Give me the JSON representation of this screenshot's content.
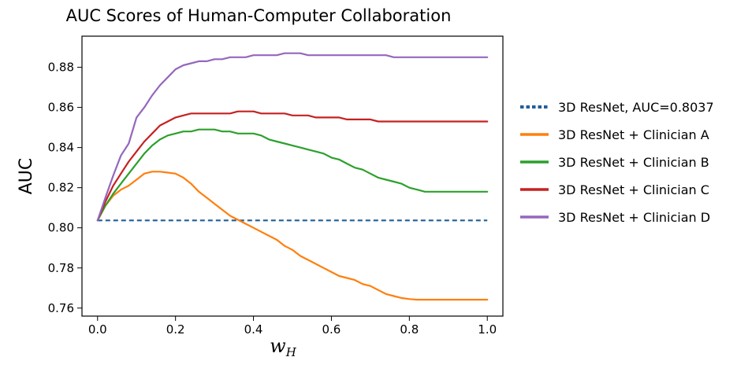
{
  "chart_data": {
    "type": "line",
    "title": "AUC Scores of Human-Computer Collaboration",
    "ylabel": "AUC",
    "xlabel_main": "w",
    "xlabel_sub": "H",
    "xlim": [
      -0.04,
      1.04
    ],
    "ylim": [
      0.756,
      0.8955
    ],
    "xticks": [
      0.0,
      0.2,
      0.4,
      0.6,
      0.8,
      1.0
    ],
    "xtick_labels": [
      "0.0",
      "0.2",
      "0.4",
      "0.6",
      "0.8",
      "1.0"
    ],
    "yticks": [
      0.76,
      0.78,
      0.8,
      0.82,
      0.84,
      0.86,
      0.88
    ],
    "ytick_labels": [
      "0.76",
      "0.78",
      "0.80",
      "0.82",
      "0.84",
      "0.86",
      "0.88"
    ],
    "grid": false,
    "legend_position": "outside-right",
    "series": [
      {
        "name": "3D ResNet, AUC=0.8037",
        "color": "#1f5f9a",
        "style": "dashed",
        "x": [
          0.0,
          1.0
        ],
        "y": [
          0.8037,
          0.8037
        ]
      },
      {
        "name": "3D ResNet + Clinician A",
        "color": "#ff7f0e",
        "style": "solid",
        "x": [
          0.0,
          0.02,
          0.04,
          0.06,
          0.08,
          0.1,
          0.12,
          0.14,
          0.16,
          0.18,
          0.2,
          0.22,
          0.24,
          0.26,
          0.28,
          0.3,
          0.32,
          0.34,
          0.36,
          0.38,
          0.4,
          0.42,
          0.44,
          0.46,
          0.48,
          0.5,
          0.52,
          0.54,
          0.56,
          0.58,
          0.6,
          0.62,
          0.64,
          0.66,
          0.68,
          0.7,
          0.72,
          0.74,
          0.76,
          0.78,
          0.8,
          0.82,
          0.84,
          0.86,
          0.88,
          0.9,
          0.92,
          0.94,
          0.96,
          0.98,
          1.0
        ],
        "y": [
          0.8037,
          0.811,
          0.816,
          0.819,
          0.821,
          0.824,
          0.827,
          0.828,
          0.828,
          0.8275,
          0.827,
          0.825,
          0.822,
          0.818,
          0.815,
          0.812,
          0.809,
          0.806,
          0.804,
          0.802,
          0.8,
          0.798,
          0.796,
          0.794,
          0.791,
          0.789,
          0.786,
          0.784,
          0.782,
          0.78,
          0.778,
          0.776,
          0.775,
          0.774,
          0.772,
          0.771,
          0.769,
          0.767,
          0.766,
          0.765,
          0.7645,
          0.7642,
          0.7642,
          0.7642,
          0.7642,
          0.7642,
          0.7642,
          0.7642,
          0.7642,
          0.7642,
          0.7642
        ]
      },
      {
        "name": "3D ResNet + Clinician B",
        "color": "#2ca02c",
        "style": "solid",
        "x": [
          0.0,
          0.02,
          0.04,
          0.06,
          0.08,
          0.1,
          0.12,
          0.14,
          0.16,
          0.18,
          0.2,
          0.22,
          0.24,
          0.26,
          0.28,
          0.3,
          0.32,
          0.34,
          0.36,
          0.38,
          0.4,
          0.42,
          0.44,
          0.46,
          0.48,
          0.5,
          0.52,
          0.54,
          0.56,
          0.58,
          0.6,
          0.62,
          0.64,
          0.66,
          0.68,
          0.7,
          0.72,
          0.74,
          0.76,
          0.78,
          0.8,
          0.82,
          0.84,
          0.86,
          0.88,
          0.9,
          0.92,
          0.94,
          0.96,
          0.98,
          1.0
        ],
        "y": [
          0.8037,
          0.811,
          0.817,
          0.822,
          0.827,
          0.832,
          0.837,
          0.841,
          0.844,
          0.846,
          0.847,
          0.848,
          0.848,
          0.849,
          0.849,
          0.849,
          0.848,
          0.848,
          0.847,
          0.847,
          0.847,
          0.846,
          0.844,
          0.843,
          0.842,
          0.841,
          0.84,
          0.839,
          0.838,
          0.837,
          0.835,
          0.834,
          0.832,
          0.83,
          0.829,
          0.827,
          0.825,
          0.824,
          0.823,
          0.822,
          0.82,
          0.819,
          0.818,
          0.818,
          0.818,
          0.818,
          0.818,
          0.818,
          0.818,
          0.818,
          0.818
        ]
      },
      {
        "name": "3D ResNet + Clinician C",
        "color": "#c62121",
        "style": "solid",
        "x": [
          0.0,
          0.02,
          0.04,
          0.06,
          0.08,
          0.1,
          0.12,
          0.14,
          0.16,
          0.18,
          0.2,
          0.22,
          0.24,
          0.26,
          0.28,
          0.3,
          0.32,
          0.34,
          0.36,
          0.38,
          0.4,
          0.42,
          0.44,
          0.46,
          0.48,
          0.5,
          0.52,
          0.54,
          0.56,
          0.58,
          0.6,
          0.62,
          0.64,
          0.66,
          0.68,
          0.7,
          0.72,
          0.74,
          0.76,
          0.78,
          0.8,
          0.82,
          0.84,
          0.86,
          0.88,
          0.9,
          0.92,
          0.94,
          0.96,
          0.98,
          1.0
        ],
        "y": [
          0.8037,
          0.813,
          0.821,
          0.827,
          0.833,
          0.838,
          0.843,
          0.847,
          0.851,
          0.853,
          0.855,
          0.856,
          0.857,
          0.857,
          0.857,
          0.857,
          0.857,
          0.857,
          0.858,
          0.858,
          0.858,
          0.857,
          0.857,
          0.857,
          0.857,
          0.856,
          0.856,
          0.856,
          0.855,
          0.855,
          0.855,
          0.855,
          0.854,
          0.854,
          0.854,
          0.854,
          0.853,
          0.853,
          0.853,
          0.853,
          0.853,
          0.853,
          0.853,
          0.853,
          0.853,
          0.853,
          0.853,
          0.853,
          0.853,
          0.853,
          0.853
        ]
      },
      {
        "name": "3D ResNet + Clinician D",
        "color": "#9467bd",
        "style": "solid",
        "x": [
          0.0,
          0.02,
          0.04,
          0.06,
          0.08,
          0.1,
          0.12,
          0.14,
          0.16,
          0.18,
          0.2,
          0.22,
          0.24,
          0.26,
          0.28,
          0.3,
          0.32,
          0.34,
          0.36,
          0.38,
          0.4,
          0.42,
          0.44,
          0.46,
          0.48,
          0.5,
          0.52,
          0.54,
          0.56,
          0.58,
          0.6,
          0.62,
          0.64,
          0.66,
          0.68,
          0.7,
          0.72,
          0.74,
          0.76,
          0.78,
          0.8,
          0.82,
          0.84,
          0.86,
          0.88,
          0.9,
          0.92,
          0.94,
          0.96,
          0.98,
          1.0
        ],
        "y": [
          0.8037,
          0.815,
          0.826,
          0.836,
          0.842,
          0.855,
          0.86,
          0.866,
          0.871,
          0.875,
          0.879,
          0.881,
          0.882,
          0.883,
          0.883,
          0.884,
          0.884,
          0.885,
          0.885,
          0.885,
          0.886,
          0.886,
          0.886,
          0.886,
          0.887,
          0.887,
          0.887,
          0.886,
          0.886,
          0.886,
          0.886,
          0.886,
          0.886,
          0.886,
          0.886,
          0.886,
          0.886,
          0.886,
          0.885,
          0.885,
          0.885,
          0.885,
          0.885,
          0.885,
          0.885,
          0.885,
          0.885,
          0.885,
          0.885,
          0.885,
          0.885
        ]
      }
    ]
  }
}
